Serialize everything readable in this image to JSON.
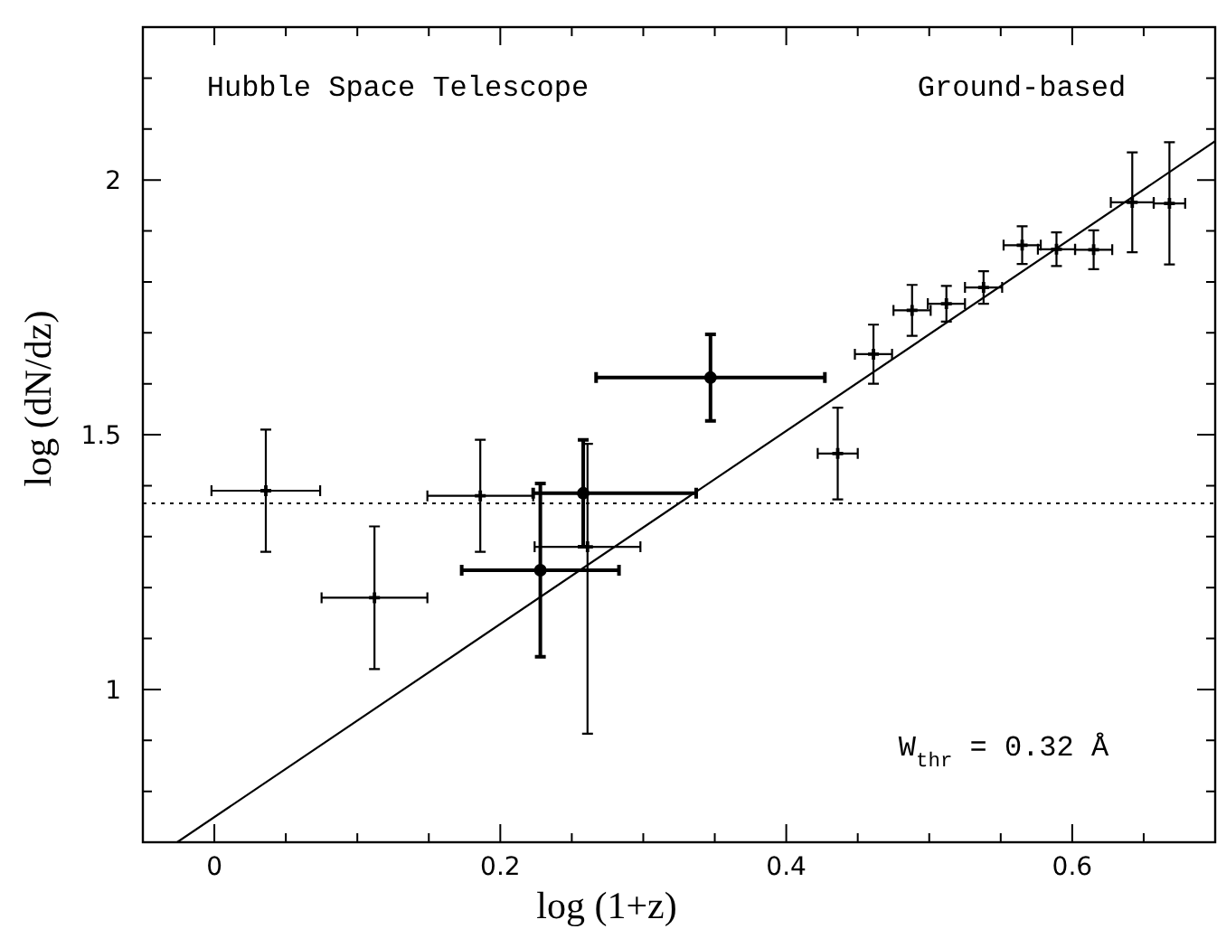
{
  "chart_data": {
    "type": "scatter",
    "xlabel": "log (1+z)",
    "ylabel": "log (dN/dz)",
    "xlim": [
      -0.05,
      0.7
    ],
    "ylim": [
      0.7,
      2.3
    ],
    "xticks": [
      {
        "value": -0.05,
        "label": null
      },
      0,
      {
        "value": 0.05,
        "label": null
      },
      {
        "value": 0.1,
        "label": null
      },
      {
        "value": 0.15,
        "label": null
      },
      0.2,
      {
        "value": 0.25,
        "label": null
      },
      {
        "value": 0.3,
        "label": null
      },
      {
        "value": 0.35,
        "label": null
      },
      0.4,
      {
        "value": 0.45,
        "label": null
      },
      {
        "value": 0.5,
        "label": null
      },
      {
        "value": 0.55,
        "label": null
      },
      0.6,
      {
        "value": 0.65,
        "label": null
      }
    ],
    "yticks": [
      {
        "value": 0.8,
        "label": null
      },
      {
        "value": 0.9,
        "label": null
      },
      1,
      {
        "value": 1.1,
        "label": null
      },
      {
        "value": 1.2,
        "label": null
      },
      {
        "value": 1.3,
        "label": null
      },
      {
        "value": 1.4,
        "label": null
      },
      1.5,
      {
        "value": 1.6,
        "label": null
      },
      {
        "value": 1.7,
        "label": null
      },
      {
        "value": 1.8,
        "label": null
      },
      {
        "value": 1.9,
        "label": null
      },
      2,
      {
        "value": 2.1,
        "label": null
      },
      {
        "value": 2.2,
        "label": null
      }
    ],
    "series": [
      {
        "type": "scatter",
        "color": "#000000",
        "marker": "cross",
        "x": [
          0.036,
          0.112,
          0.186,
          0.261
        ],
        "values": [
          1.39,
          1.18,
          1.38,
          1.28
        ],
        "errors": [
          0.12,
          0.14,
          0.11,
          [
            0.913,
            1.482
          ]
        ],
        "xerrors": [
          0.038,
          0.037,
          0.037,
          0.037
        ]
      },
      {
        "type": "scatter",
        "color": "#000000",
        "marker": "circle",
        "x": [
          0.228,
          0.258,
          0.347
        ],
        "values": [
          1.234,
          1.385,
          1.612
        ],
        "errors": [
          0.17,
          0.105,
          0.085
        ],
        "xerrors": [
          0.055,
          [
            0.223,
            0.337
          ],
          0.08
        ]
      },
      {
        "type": "scatter",
        "color": "#000000",
        "marker": "cross",
        "x": [
          0.436,
          0.461,
          0.488,
          0.512,
          0.538,
          0.565,
          0.589,
          0.615,
          0.642,
          0.668
        ],
        "values": [
          1.463,
          1.658,
          1.744,
          1.757,
          1.789,
          1.872,
          1.864,
          1.863,
          1.956,
          1.954
        ],
        "errors": [
          0.09,
          0.058,
          0.05,
          0.035,
          0.032,
          0.037,
          0.033,
          0.038,
          0.098,
          0.12
        ],
        "xerrors": [
          0.014,
          0.013,
          0.013,
          0.013,
          0.013,
          0.013,
          0.013,
          0.013,
          0.015,
          0.011
        ]
      },
      {
        "type": "line",
        "color": "#000000",
        "line_style": "solid",
        "x": [
          -0.026,
          0.7
        ],
        "values": [
          0.7,
          2.076
        ]
      }
    ],
    "ref_lines": [
      {
        "axis": "y",
        "value": 1.365,
        "line_style": "dotted"
      }
    ],
    "annotations": [
      "Hubble Space Telescope",
      "Ground-based",
      "W$_{thr}$ = 0.32 Å"
    ]
  }
}
